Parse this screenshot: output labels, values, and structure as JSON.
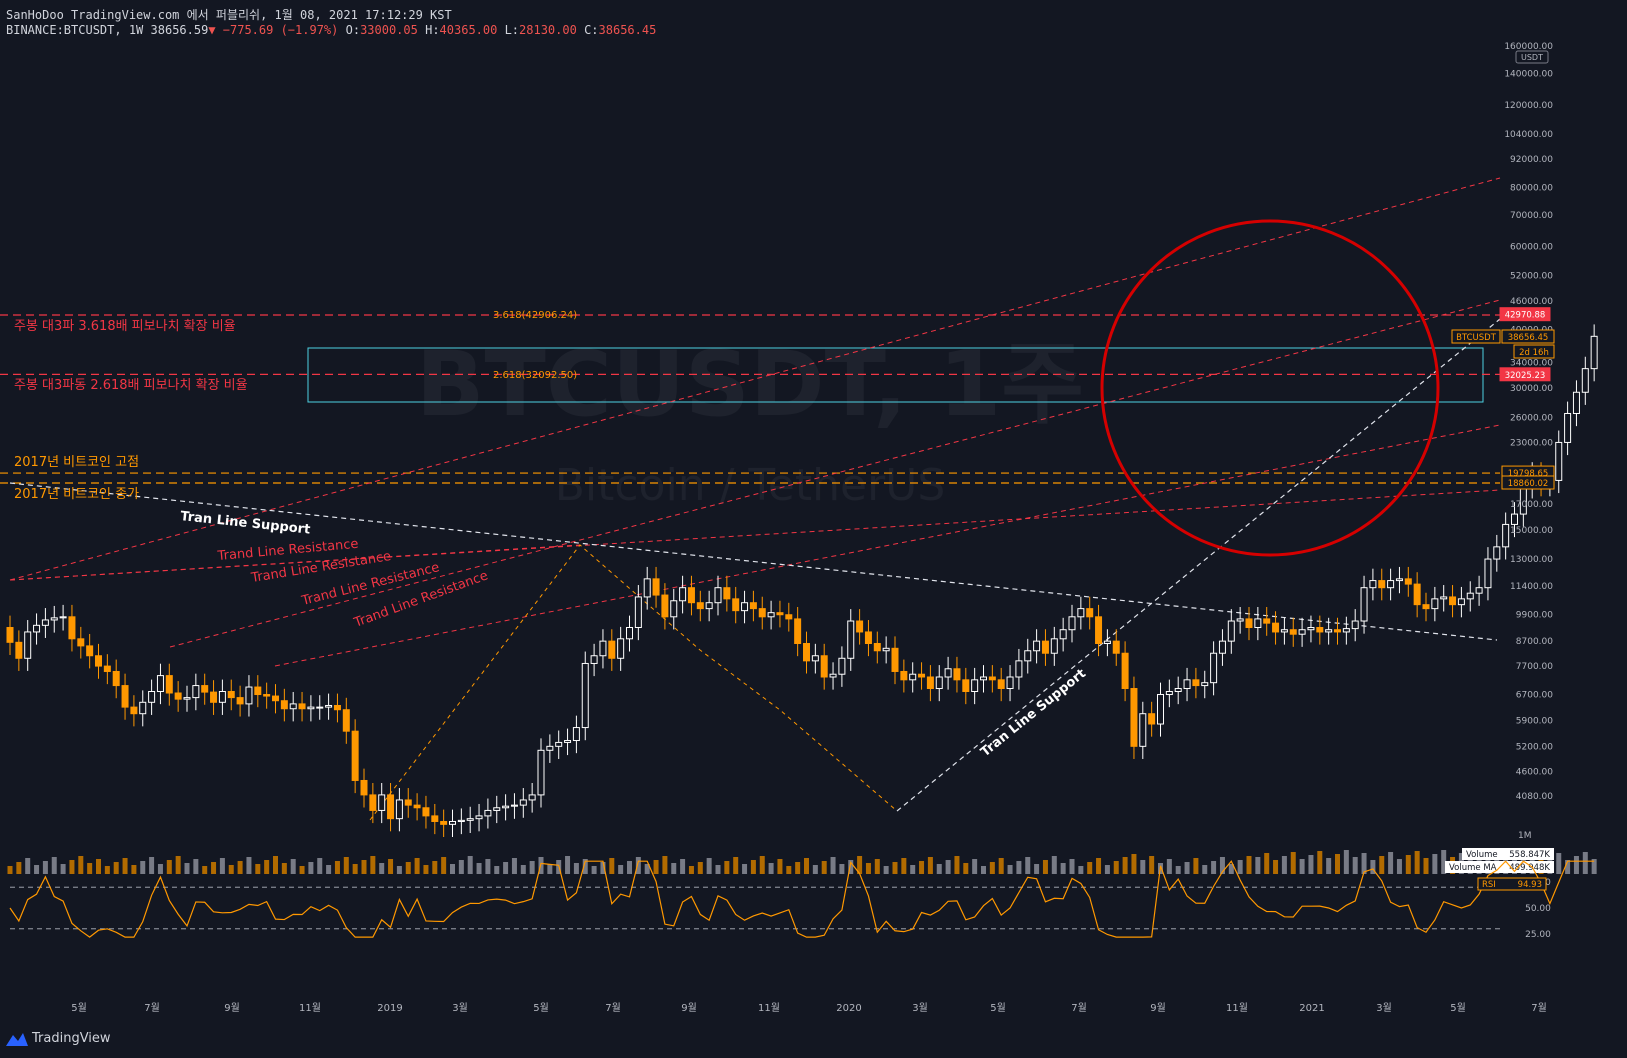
{
  "header": {
    "publish_line": "SanHoDoo TradingView.com 에서 퍼블리쉬, 1월 08, 2021 17:12:29 KST",
    "symbol": "BINANCE:BTCUSDT, 1W",
    "last": "38656.59",
    "change": "−775.69 (−1.97%)",
    "o_label": "O:",
    "o": "33000.05",
    "h_label": "H:",
    "h": "40365.00",
    "l_label": "L:",
    "l": "28130.00",
    "c_label": "C:",
    "c": "38656.45"
  },
  "watermark": {
    "symbol": "BTCUSDT, 1주",
    "name": "Bitcoin / TetherUS"
  },
  "annotations": {
    "fib_3618_text": "주봉 대3파 3.618배 피보나치 확장 비율",
    "fib_2618_text": "주봉 대3파동 2.618배 피보나치 확장 비율",
    "fib_3618_label": "3.618(42906.24)",
    "fib_2618_label": "2.618(32092.50)",
    "close_2017_high": "2017년 비트코인 고점",
    "close_2017": "2017년 비트코인 종가",
    "support_top": "Tran Line Support",
    "support_bottom": "Tran Line Support",
    "resistance": [
      "Trand Line Resistance",
      "Trand Line Resistance",
      "Trand Line Resistance",
      "Trand Line Resistance"
    ]
  },
  "price_axis": {
    "unit": "USDT",
    "ticks": [
      "160000.00",
      "140000.00",
      "120000.00",
      "104000.00",
      "92000.00",
      "80000.00",
      "70000.00",
      "60000.00",
      "52000.00",
      "46000.00",
      "40000.00",
      "34000.00",
      "30000.00",
      "26000.00",
      "23000.00",
      "20000.00",
      "17000.00",
      "15000.00",
      "13000.00",
      "11400.00",
      "9900.00",
      "8700.00",
      "7700.00",
      "6700.00",
      "5900.00",
      "5200.00",
      "4600.00",
      "4080.00"
    ],
    "tags": [
      {
        "text": "42970.88",
        "color": "#f23645"
      },
      {
        "text": "BTCUSDT",
        "color": "#ff9800"
      },
      {
        "text": "38656.45",
        "color": "#ff9800"
      },
      {
        "text": "2d 16h",
        "color": "#ff9800"
      },
      {
        "text": "32025.23",
        "color": "#f23645"
      },
      {
        "text": "19798.65",
        "color": "#ff9800"
      },
      {
        "text": "18860.02",
        "color": "#ff9800"
      }
    ]
  },
  "volume_pane": {
    "axis_label": "1M",
    "volume_label": "Volume",
    "volume_value": "558.847K",
    "ma_label": "Volume MA",
    "ma_value": "489.948K"
  },
  "rsi_pane": {
    "label": "RSI",
    "value": "94.93",
    "ticks": [
      "75.00",
      "50.00",
      "25.00"
    ]
  },
  "time_axis": [
    "5월",
    "7월",
    "9월",
    "11월",
    "2019",
    "3월",
    "5월",
    "7월",
    "9월",
    "11월",
    "2020",
    "3월",
    "5월",
    "7월",
    "9월",
    "11월",
    "2021",
    "3월",
    "5월",
    "7월"
  ],
  "brand": "TradingView",
  "colors": {
    "up": "#ffffff",
    "down": "#ff9800",
    "red_line": "#f23645",
    "orange_line": "#ff9800",
    "box": "#4dd0e1",
    "circle": "#d50000",
    "rsi": "#ff9800"
  },
  "chart_data": {
    "type": "candlestick",
    "symbol": "BINANCE:BTCUSDT",
    "interval": "1W",
    "y_scale": "log",
    "ylim": [
      3600,
      170000
    ],
    "closes": [
      8650,
      8000,
      9100,
      9400,
      9650,
      9750,
      9800,
      8800,
      8500,
      8100,
      7700,
      7500,
      7000,
      6300,
      6100,
      6450,
      6800,
      7350,
      6750,
      6550,
      6600,
      7000,
      6780,
      6450,
      6800,
      6600,
      6400,
      6950,
      6700,
      6650,
      6500,
      6250,
      6400,
      6250,
      6300,
      6300,
      6350,
      6220,
      5600,
      4400,
      4100,
      3800,
      4100,
      3650,
      4000,
      3900,
      3850,
      3700,
      3600,
      3550,
      3600,
      3620,
      3650,
      3700,
      3800,
      3850,
      3880,
      3900,
      4000,
      4100,
      5100,
      5200,
      5300,
      5350,
      5700,
      7800,
      8100,
      8700,
      8000,
      8800,
      9300,
      10800,
      11800,
      10900,
      9800,
      10600,
      11300,
      10500,
      10200,
      10500,
      11300,
      10700,
      10100,
      10500,
      10200,
      9800,
      10000,
      9900,
      9700,
      8600,
      7900,
      8100,
      7300,
      7400,
      8000,
      9600,
      9100,
      8600,
      8300,
      8400,
      7500,
      7200,
      7400,
      7300,
      6900,
      7300,
      7600,
      7200,
      6800,
      7200,
      7300,
      7200,
      6900,
      7300,
      7900,
      8300,
      8700,
      8200,
      8800,
      9200,
      9800,
      10200,
      9800,
      8600,
      8700,
      8200,
      6900,
      5200,
      6100,
      5800,
      6700,
      6800,
      6900,
      7200,
      7000,
      7100,
      8200,
      8700,
      9600,
      9700,
      9300,
      9700,
      9500,
      9100,
      9200,
      9000,
      9200,
      9300,
      9100,
      9200,
      9100,
      9250,
      9600,
      11300,
      11700,
      11300,
      11700,
      11800,
      11500,
      10400,
      10200,
      10700,
      10800,
      10400,
      10700,
      11000,
      11300,
      13000,
      13800,
      15400,
      16200,
      18600,
      19700,
      18800,
      19100,
      23000,
      26500,
      29400,
      33000,
      38656
    ],
    "ohlc_header": {
      "open": 33000.05,
      "high": 40365.0,
      "low": 28130.0,
      "close": 38656.45,
      "change": -775.69,
      "change_pct": -1.97
    },
    "levels": [
      {
        "name": "3.618 extension",
        "value": 42906.24
      },
      {
        "name": "2.618 extension",
        "value": 32092.5
      },
      {
        "name": "2017 high",
        "value": 19798.65
      },
      {
        "name": "2017 close",
        "value": 18860.02
      }
    ],
    "rsi_last": 94.93,
    "volume_last": "558.847K",
    "volume_ma_last": "489.948K"
  }
}
